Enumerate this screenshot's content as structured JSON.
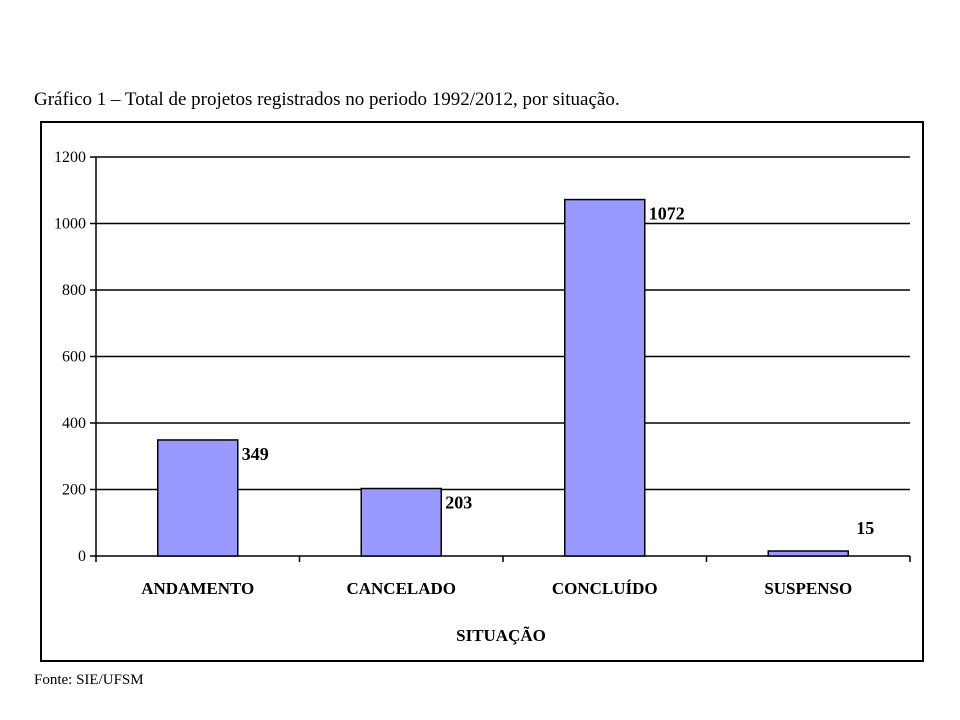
{
  "caption": "Gráfico 1 – Total de projetos registrados no periodo 1992/2012, por situação.",
  "source": "Fonte: SIE/UFSM",
  "colors": {
    "bar": "#9999ff",
    "bar_stroke": "#000000",
    "grid": "#000000"
  },
  "chart_data": {
    "type": "bar",
    "title": "",
    "xlabel": "SITUAÇÃO",
    "ylabel": "",
    "categories": [
      "ANDAMENTO",
      "CANCELADO",
      "CONCLUÍDO",
      "SUSPENSO"
    ],
    "values": [
      349,
      203,
      1072,
      15
    ],
    "data_labels": [
      "349",
      "203",
      "1072",
      "15"
    ],
    "ylim": [
      0,
      1200
    ],
    "yticks": [
      "0",
      "200",
      "400",
      "600",
      "800",
      "1000",
      "1200"
    ],
    "grid": true,
    "legend": "none"
  }
}
